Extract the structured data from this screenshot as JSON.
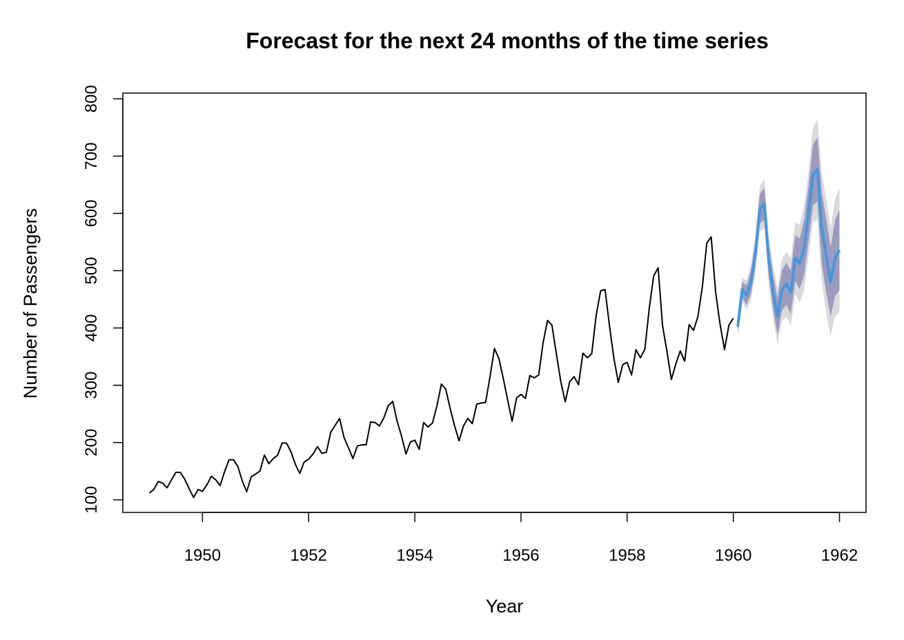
{
  "chart_data": {
    "type": "line",
    "title": "Forecast for the next 24 months of the time series",
    "xlabel": "Year",
    "ylabel": "Number of Passengers",
    "xlim": [
      1948.5,
      1962.5
    ],
    "ylim": [
      78,
      810
    ],
    "xticks": [
      1950,
      1952,
      1954,
      1956,
      1958,
      1960,
      1962
    ],
    "yticks": [
      100,
      200,
      300,
      400,
      500,
      600,
      700,
      800
    ],
    "x_start": 1949.0,
    "x_step": 0.0833333,
    "series": [
      {
        "role": "observed",
        "color": "#000000",
        "values": [
          112,
          118,
          132,
          129,
          121,
          135,
          148,
          148,
          136,
          119,
          104,
          118,
          115,
          126,
          141,
          135,
          125,
          149,
          170,
          170,
          158,
          133,
          114,
          140,
          145,
          150,
          178,
          163,
          172,
          178,
          199,
          199,
          184,
          162,
          146,
          166,
          171,
          180,
          193,
          181,
          183,
          218,
          230,
          242,
          209,
          191,
          172,
          194,
          196,
          196,
          236,
          235,
          229,
          243,
          264,
          272,
          237,
          211,
          180,
          201,
          204,
          188,
          235,
          227,
          234,
          264,
          302,
          293,
          259,
          229,
          203,
          229,
          242,
          233,
          267,
          269,
          270,
          315,
          364,
          347,
          312,
          274,
          237,
          278,
          284,
          277,
          317,
          313,
          318,
          374,
          413,
          405,
          355,
          306,
          271,
          306,
          315,
          301,
          356,
          348,
          355,
          422,
          465,
          467,
          404,
          347,
          305,
          336,
          340,
          318,
          362,
          348,
          363,
          435,
          491,
          505,
          404,
          359,
          310,
          337,
          360,
          342,
          406,
          396,
          420,
          472,
          548,
          559,
          463,
          407,
          362,
          405,
          417
        ]
      },
      {
        "role": "forecast",
        "color": "#4796dd",
        "x_start": 1960.0833,
        "values": [
          402,
          467,
          457,
          480,
          530,
          608,
          617,
          519,
          462,
          420,
          466,
          477,
          462,
          522,
          512,
          540,
          600,
          667,
          677,
          574,
          526,
          480,
          522,
          536
        ],
        "lo80": [
          391,
          453,
          440,
          460,
          508,
          582,
          589,
          491,
          432,
          388,
          431,
          440,
          424,
          482,
          468,
          492,
          552,
          614,
          621,
          512,
          462,
          420,
          456,
          466
        ],
        "hi80": [
          413,
          481,
          474,
          500,
          552,
          634,
          645,
          547,
          492,
          452,
          501,
          514,
          500,
          562,
          556,
          588,
          648,
          720,
          733,
          636,
          590,
          540,
          588,
          606
        ],
        "lo95": [
          385,
          446,
          431,
          449,
          496,
          568,
          574,
          476,
          416,
          371,
          412,
          420,
          403,
          459,
          444,
          466,
          526,
          585,
          590,
          478,
          427,
          386,
          419,
          428
        ],
        "hi95": [
          419,
          488,
          483,
          511,
          564,
          648,
          660,
          562,
          508,
          469,
          520,
          534,
          521,
          585,
          580,
          614,
          674,
          749,
          764,
          670,
          625,
          574,
          625,
          644
        ],
        "band80_color": "#9b9bbd",
        "band95_color": "#d9d9de"
      }
    ]
  }
}
